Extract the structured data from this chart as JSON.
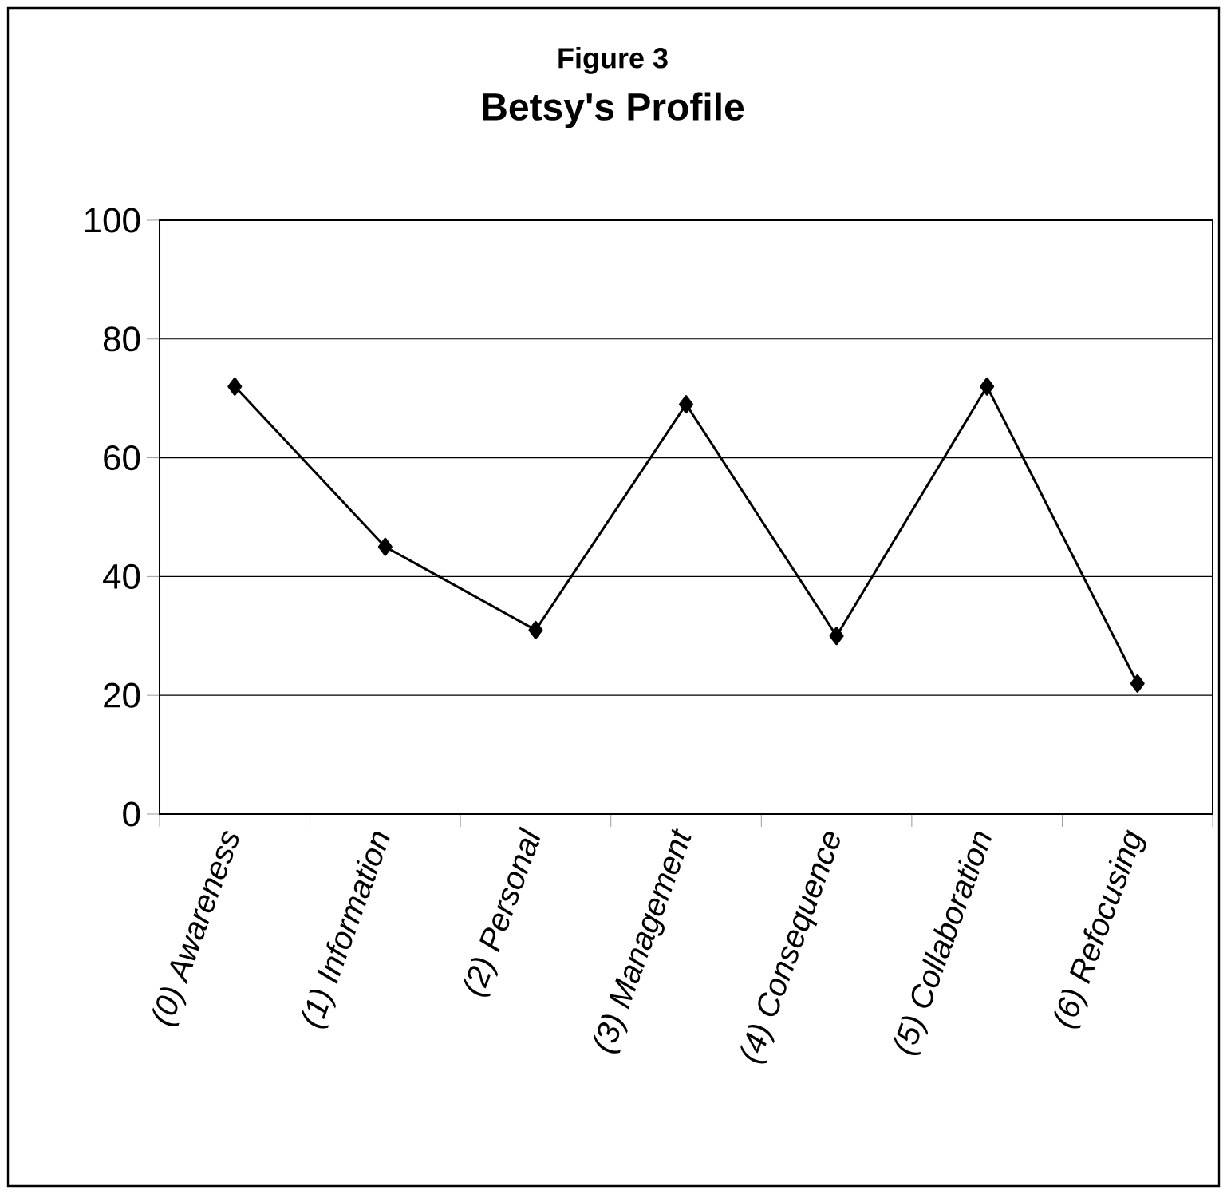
{
  "chart_data": {
    "type": "line",
    "title": "Figure 3",
    "subtitle": "Betsy's Profile",
    "categories": [
      "(0) Awareness",
      "(1) Information",
      "(2) Personal",
      "(3) Management",
      "(4) Consequence",
      "(5) Collaboration",
      "(6) Refocusing"
    ],
    "series": [
      {
        "color": "#000000",
        "values": [
          72,
          45,
          31,
          69,
          30,
          72,
          22
        ]
      }
    ],
    "ylim": [
      0,
      100
    ],
    "yticks": [
      0,
      20,
      40,
      60,
      80,
      100
    ],
    "grid": "y",
    "marker": "diamond",
    "line_style": "solid"
  }
}
